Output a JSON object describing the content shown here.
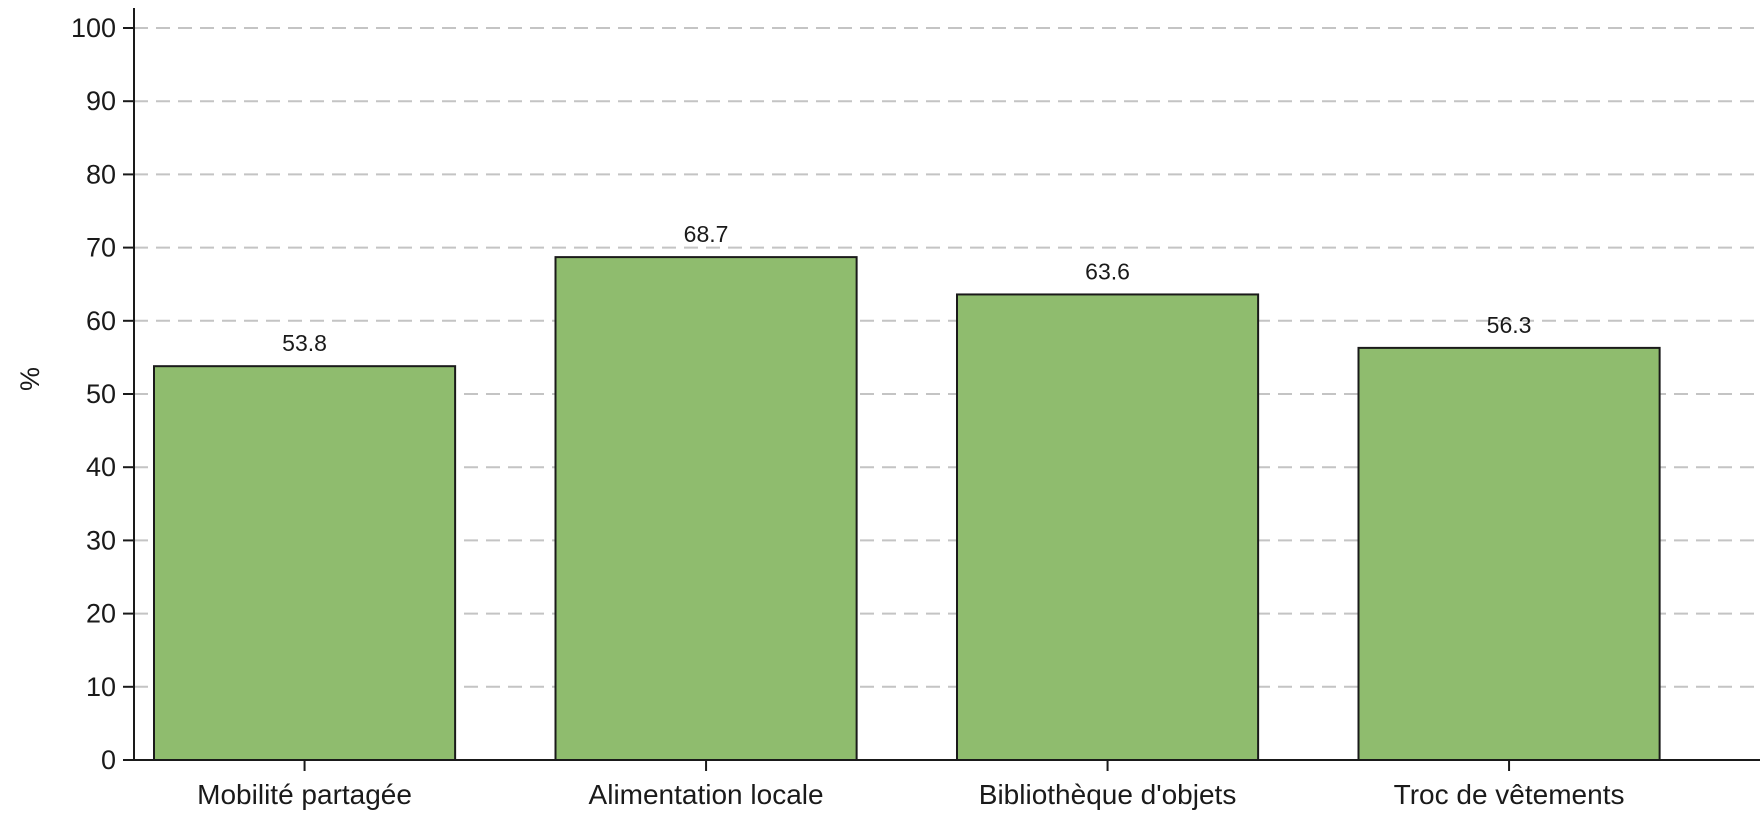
{
  "chart_data": {
    "type": "bar",
    "title": "",
    "xlabel": "",
    "ylabel": "%",
    "categories": [
      "Mobilité partagée",
      "Alimentation locale",
      "Bibliothèque d'objets",
      "Troc de vêtements"
    ],
    "values": [
      53.8,
      68.7,
      63.6,
      56.3
    ],
    "value_labels": [
      "53.8",
      "68.7",
      "63.6",
      "56.3"
    ],
    "ylim": [
      0,
      100
    ],
    "yticks": [
      0,
      10,
      20,
      30,
      40,
      50,
      60,
      70,
      80,
      90,
      100
    ],
    "grid": "horizontal dashed",
    "legend": "none",
    "colors": {
      "bar_fill": "#8fbc6e",
      "bar_edge": "#1a1a1a",
      "grid": "#c4c4c4",
      "axis": "#1a1a1a"
    }
  }
}
